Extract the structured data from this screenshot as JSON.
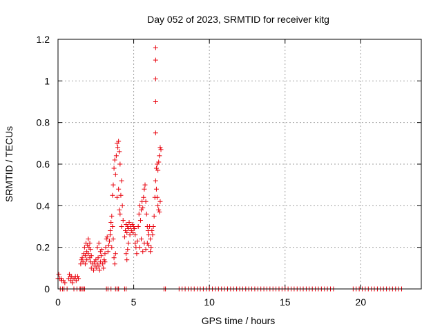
{
  "chart_data": {
    "type": "scatter",
    "title": "Day 052 of 2023, SRMTID for receiver kitg",
    "xlabel": "GPS time / hours",
    "ylabel": "SRMTID / TECUs",
    "xlim": [
      0,
      24
    ],
    "ylim": [
      0,
      1.2
    ],
    "x_ticks": [
      0,
      5,
      10,
      15,
      20
    ],
    "y_ticks": [
      0,
      0.2,
      0.4,
      0.6,
      0.8,
      1,
      1.2
    ],
    "x_tick_labels": [
      "0",
      "5",
      "10",
      "15",
      "20"
    ],
    "y_tick_labels": [
      "0",
      "0.2",
      "0.4",
      "0.6",
      "0.8",
      "1",
      "1.2"
    ],
    "grid": true,
    "marker": "plus",
    "color": "#e8000b",
    "series": [
      {
        "name": "SRMTID",
        "points": [
          [
            0.0,
            0.05
          ],
          [
            0.05,
            0.07
          ],
          [
            0.1,
            0.05
          ],
          [
            0.15,
            0.0
          ],
          [
            0.2,
            0.05
          ],
          [
            0.25,
            0.04
          ],
          [
            0.3,
            0.0
          ],
          [
            0.35,
            0.04
          ],
          [
            0.4,
            0.0
          ],
          [
            0.45,
            0.03
          ],
          [
            0.6,
            0.0
          ],
          [
            0.7,
            0.05
          ],
          [
            0.75,
            0.07
          ],
          [
            0.8,
            0.06
          ],
          [
            0.85,
            0.04
          ],
          [
            0.9,
            0.06
          ],
          [
            0.95,
            0.03
          ],
          [
            1.0,
            0.05
          ],
          [
            1.05,
            0.0
          ],
          [
            1.1,
            0.05
          ],
          [
            1.15,
            0.06
          ],
          [
            1.2,
            0.04
          ],
          [
            1.25,
            0.0
          ],
          [
            1.3,
            0.06
          ],
          [
            1.35,
            0.05
          ],
          [
            1.45,
            0.0
          ],
          [
            1.5,
            0.0
          ],
          [
            1.6,
            0.0
          ],
          [
            1.7,
            0.0
          ],
          [
            1.75,
            0.0
          ],
          [
            1.5,
            0.12
          ],
          [
            1.55,
            0.14
          ],
          [
            1.6,
            0.15
          ],
          [
            1.65,
            0.13
          ],
          [
            1.7,
            0.17
          ],
          [
            1.75,
            0.2
          ],
          [
            1.8,
            0.16
          ],
          [
            1.85,
            0.22
          ],
          [
            1.9,
            0.18
          ],
          [
            1.95,
            0.21
          ],
          [
            2.0,
            0.24
          ],
          [
            2.05,
            0.2
          ],
          [
            2.1,
            0.22
          ],
          [
            2.15,
            0.19
          ],
          [
            2.2,
            0.16
          ],
          [
            1.8,
            0.12
          ],
          [
            1.9,
            0.14
          ],
          [
            2.0,
            0.17
          ],
          [
            2.1,
            0.15
          ],
          [
            2.15,
            0.13
          ],
          [
            2.2,
            0.1
          ],
          [
            2.3,
            0.12
          ],
          [
            2.35,
            0.09
          ],
          [
            2.4,
            0.13
          ],
          [
            2.45,
            0.11
          ],
          [
            2.5,
            0.14
          ],
          [
            2.55,
            0.1
          ],
          [
            2.6,
            0.12
          ],
          [
            2.65,
            0.15
          ],
          [
            2.7,
            0.11
          ],
          [
            2.75,
            0.09
          ],
          [
            2.8,
            0.13
          ],
          [
            2.85,
            0.16
          ],
          [
            2.9,
            0.19
          ],
          [
            2.95,
            0.12
          ],
          [
            3.0,
            0.1
          ],
          [
            3.05,
            0.14
          ],
          [
            3.1,
            0.17
          ],
          [
            2.6,
            0.2
          ],
          [
            2.7,
            0.22
          ],
          [
            2.8,
            0.18
          ],
          [
            3.1,
            0.13
          ],
          [
            3.15,
            0.2
          ],
          [
            3.2,
            0.24
          ],
          [
            3.25,
            0.25
          ],
          [
            3.3,
            0.18
          ],
          [
            3.35,
            0.21
          ],
          [
            3.4,
            0.23
          ],
          [
            3.45,
            0.28
          ],
          [
            3.5,
            0.32
          ],
          [
            3.55,
            0.35
          ],
          [
            3.6,
            0.3
          ],
          [
            3.45,
            0.26
          ],
          [
            3.55,
            0.2
          ],
          [
            3.65,
            0.24
          ],
          [
            3.6,
            0.45
          ],
          [
            3.65,
            0.5
          ],
          [
            3.7,
            0.58
          ],
          [
            3.75,
            0.62
          ],
          [
            3.8,
            0.55
          ],
          [
            3.85,
            0.64
          ],
          [
            3.9,
            0.7
          ],
          [
            3.95,
            0.68
          ],
          [
            4.0,
            0.71
          ],
          [
            4.05,
            0.66
          ],
          [
            4.1,
            0.6
          ],
          [
            3.9,
            0.44
          ],
          [
            4.0,
            0.48
          ],
          [
            4.05,
            0.38
          ],
          [
            4.1,
            0.36
          ],
          [
            4.15,
            0.45
          ],
          [
            4.2,
            0.52
          ],
          [
            4.25,
            0.4
          ],
          [
            4.3,
            0.33
          ],
          [
            4.2,
            0.3
          ],
          [
            3.7,
            0.15
          ],
          [
            3.75,
            0.12
          ],
          [
            3.8,
            0.17
          ],
          [
            3.2,
            0.0
          ],
          [
            3.3,
            0.0
          ],
          [
            3.5,
            0.0
          ],
          [
            3.8,
            0.0
          ],
          [
            3.9,
            0.0
          ],
          [
            4.0,
            0.0
          ],
          [
            4.4,
            0.0
          ],
          [
            4.5,
            0.0
          ],
          [
            4.4,
            0.25
          ],
          [
            4.45,
            0.28
          ],
          [
            4.5,
            0.31
          ],
          [
            4.55,
            0.27
          ],
          [
            4.6,
            0.3
          ],
          [
            4.65,
            0.29
          ],
          [
            4.7,
            0.32
          ],
          [
            4.75,
            0.26
          ],
          [
            4.8,
            0.3
          ],
          [
            4.85,
            0.28
          ],
          [
            4.9,
            0.31
          ],
          [
            4.95,
            0.27
          ],
          [
            5.0,
            0.3
          ],
          [
            5.05,
            0.29
          ],
          [
            5.1,
            0.26
          ],
          [
            4.5,
            0.17
          ],
          [
            4.55,
            0.14
          ],
          [
            4.6,
            0.19
          ],
          [
            4.65,
            0.22
          ],
          [
            5.1,
            0.22
          ],
          [
            5.15,
            0.2
          ],
          [
            5.2,
            0.17
          ],
          [
            5.25,
            0.23
          ],
          [
            5.3,
            0.3
          ],
          [
            5.35,
            0.36
          ],
          [
            5.4,
            0.4
          ],
          [
            5.45,
            0.33
          ],
          [
            5.5,
            0.38
          ],
          [
            5.55,
            0.42
          ],
          [
            5.6,
            0.39
          ],
          [
            5.65,
            0.44
          ],
          [
            5.7,
            0.48
          ],
          [
            5.75,
            0.5
          ],
          [
            5.8,
            0.42
          ],
          [
            5.85,
            0.36
          ],
          [
            5.9,
            0.3
          ],
          [
            5.95,
            0.28
          ],
          [
            6.0,
            0.26
          ],
          [
            6.05,
            0.3
          ],
          [
            6.1,
            0.24
          ],
          [
            6.15,
            0.2
          ],
          [
            5.4,
            0.2
          ],
          [
            5.5,
            0.24
          ],
          [
            5.6,
            0.18
          ],
          [
            5.7,
            0.22
          ],
          [
            5.8,
            0.19
          ],
          [
            5.9,
            0.22
          ],
          [
            6.0,
            0.21
          ],
          [
            6.1,
            0.18
          ],
          [
            6.2,
            0.28
          ],
          [
            6.25,
            0.26
          ],
          [
            6.3,
            0.3
          ],
          [
            6.35,
            0.35
          ],
          [
            6.4,
            0.44
          ],
          [
            6.45,
            0.52
          ],
          [
            6.5,
            0.58
          ],
          [
            6.55,
            0.6
          ],
          [
            6.6,
            0.57
          ],
          [
            6.65,
            0.61
          ],
          [
            6.7,
            0.64
          ],
          [
            6.75,
            0.68
          ],
          [
            6.8,
            0.67
          ],
          [
            6.6,
            0.4
          ],
          [
            6.65,
            0.38
          ],
          [
            6.7,
            0.37
          ],
          [
            6.75,
            0.42
          ],
          [
            6.5,
            0.48
          ],
          [
            6.55,
            0.44
          ],
          [
            6.45,
            0.75
          ],
          [
            6.45,
            0.9
          ],
          [
            6.45,
            1.01
          ],
          [
            6.45,
            1.1
          ],
          [
            6.45,
            1.16
          ],
          [
            7.0,
            0.0
          ],
          [
            7.1,
            0.0
          ],
          [
            8.0,
            0.0
          ],
          [
            8.2,
            0.0
          ],
          [
            8.4,
            0.0
          ],
          [
            8.6,
            0.0
          ],
          [
            8.8,
            0.0
          ],
          [
            9.0,
            0.0
          ],
          [
            9.2,
            0.0
          ],
          [
            9.4,
            0.0
          ],
          [
            9.6,
            0.0
          ],
          [
            9.8,
            0.0
          ],
          [
            10.0,
            0.0
          ],
          [
            10.2,
            0.0
          ],
          [
            10.4,
            0.0
          ],
          [
            10.6,
            0.0
          ],
          [
            10.8,
            0.0
          ],
          [
            11.0,
            0.0
          ],
          [
            11.2,
            0.0
          ],
          [
            11.4,
            0.0
          ],
          [
            11.6,
            0.0
          ],
          [
            11.8,
            0.0
          ],
          [
            12.0,
            0.0
          ],
          [
            12.2,
            0.0
          ],
          [
            12.4,
            0.0
          ],
          [
            12.6,
            0.0
          ],
          [
            12.8,
            0.0
          ],
          [
            13.0,
            0.0
          ],
          [
            13.2,
            0.0
          ],
          [
            13.4,
            0.0
          ],
          [
            13.6,
            0.0
          ],
          [
            13.8,
            0.0
          ],
          [
            14.0,
            0.0
          ],
          [
            14.2,
            0.0
          ],
          [
            14.4,
            0.0
          ],
          [
            14.6,
            0.0
          ],
          [
            14.8,
            0.0
          ],
          [
            15.0,
            0.0
          ],
          [
            15.2,
            0.0
          ],
          [
            15.4,
            0.0
          ],
          [
            15.6,
            0.0
          ],
          [
            15.8,
            0.0
          ],
          [
            16.0,
            0.0
          ],
          [
            16.2,
            0.0
          ],
          [
            16.4,
            0.0
          ],
          [
            16.6,
            0.0
          ],
          [
            16.8,
            0.0
          ],
          [
            17.0,
            0.0
          ],
          [
            17.2,
            0.0
          ],
          [
            17.4,
            0.0
          ],
          [
            17.6,
            0.0
          ],
          [
            17.8,
            0.0
          ],
          [
            18.0,
            0.0
          ],
          [
            18.2,
            0.0
          ],
          [
            19.5,
            0.0
          ],
          [
            19.7,
            0.0
          ],
          [
            19.9,
            0.0
          ],
          [
            20.1,
            0.0
          ],
          [
            20.3,
            0.0
          ],
          [
            20.5,
            0.0
          ],
          [
            20.7,
            0.0
          ],
          [
            20.9,
            0.0
          ],
          [
            21.1,
            0.0
          ],
          [
            21.3,
            0.0
          ],
          [
            21.5,
            0.0
          ],
          [
            21.7,
            0.0
          ],
          [
            21.9,
            0.0
          ],
          [
            22.1,
            0.0
          ],
          [
            22.3,
            0.0
          ],
          [
            22.5,
            0.0
          ],
          [
            22.7,
            0.0
          ]
        ]
      }
    ]
  }
}
